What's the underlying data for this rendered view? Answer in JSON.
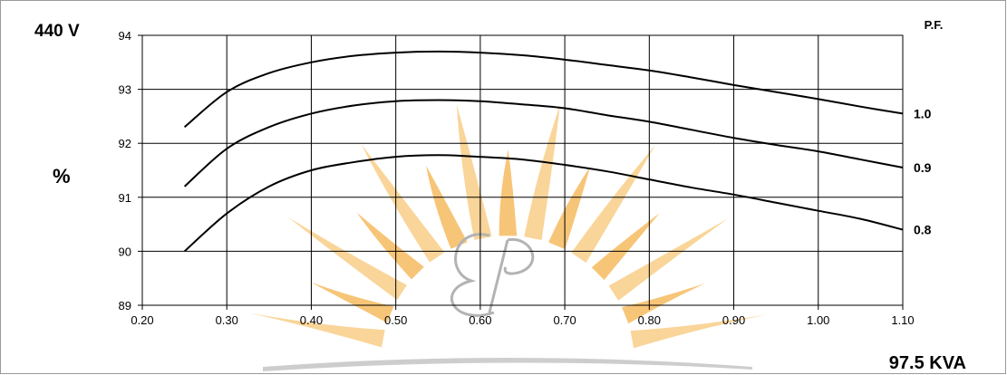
{
  "chart_data": {
    "type": "line",
    "voltage_label": "440 V",
    "ylabel": "%",
    "xlabel": "97.5 KVA",
    "legend_title": "P.F.",
    "xlim": [
      0.2,
      1.1
    ],
    "ylim": [
      89,
      94
    ],
    "x_ticks": [
      "0.20",
      "0.30",
      "0.40",
      "0.50",
      "0.60",
      "0.70",
      "0.80",
      "0.90",
      "1.00",
      "1.10"
    ],
    "y_ticks": [
      "89",
      "90",
      "91",
      "92",
      "93",
      "94"
    ],
    "grid": true,
    "series": [
      {
        "name": "1.0",
        "x": [
          0.25,
          0.3,
          0.35,
          0.4,
          0.45,
          0.5,
          0.55,
          0.6,
          0.65,
          0.7,
          0.75,
          0.8,
          0.85,
          0.9,
          0.95,
          1.0,
          1.05,
          1.1
        ],
        "y": [
          92.3,
          92.95,
          93.3,
          93.5,
          93.62,
          93.68,
          93.7,
          93.68,
          93.63,
          93.55,
          93.45,
          93.35,
          93.22,
          93.08,
          92.95,
          92.82,
          92.68,
          92.55
        ]
      },
      {
        "name": "0.9",
        "x": [
          0.25,
          0.3,
          0.35,
          0.4,
          0.45,
          0.5,
          0.55,
          0.6,
          0.65,
          0.7,
          0.75,
          0.8,
          0.85,
          0.9,
          0.95,
          1.0,
          1.05,
          1.1
        ],
        "y": [
          91.2,
          91.9,
          92.3,
          92.55,
          92.7,
          92.78,
          92.8,
          92.78,
          92.72,
          92.65,
          92.52,
          92.4,
          92.25,
          92.1,
          91.97,
          91.85,
          91.7,
          91.55
        ]
      },
      {
        "name": "0.8",
        "x": [
          0.25,
          0.3,
          0.35,
          0.4,
          0.45,
          0.5,
          0.55,
          0.6,
          0.65,
          0.7,
          0.75,
          0.8,
          0.85,
          0.9,
          0.95,
          1.0,
          1.05,
          1.1
        ],
        "y": [
          90.0,
          90.7,
          91.2,
          91.5,
          91.65,
          91.75,
          91.78,
          91.75,
          91.7,
          91.6,
          91.48,
          91.33,
          91.18,
          91.05,
          90.9,
          90.75,
          90.6,
          90.4
        ]
      }
    ]
  }
}
